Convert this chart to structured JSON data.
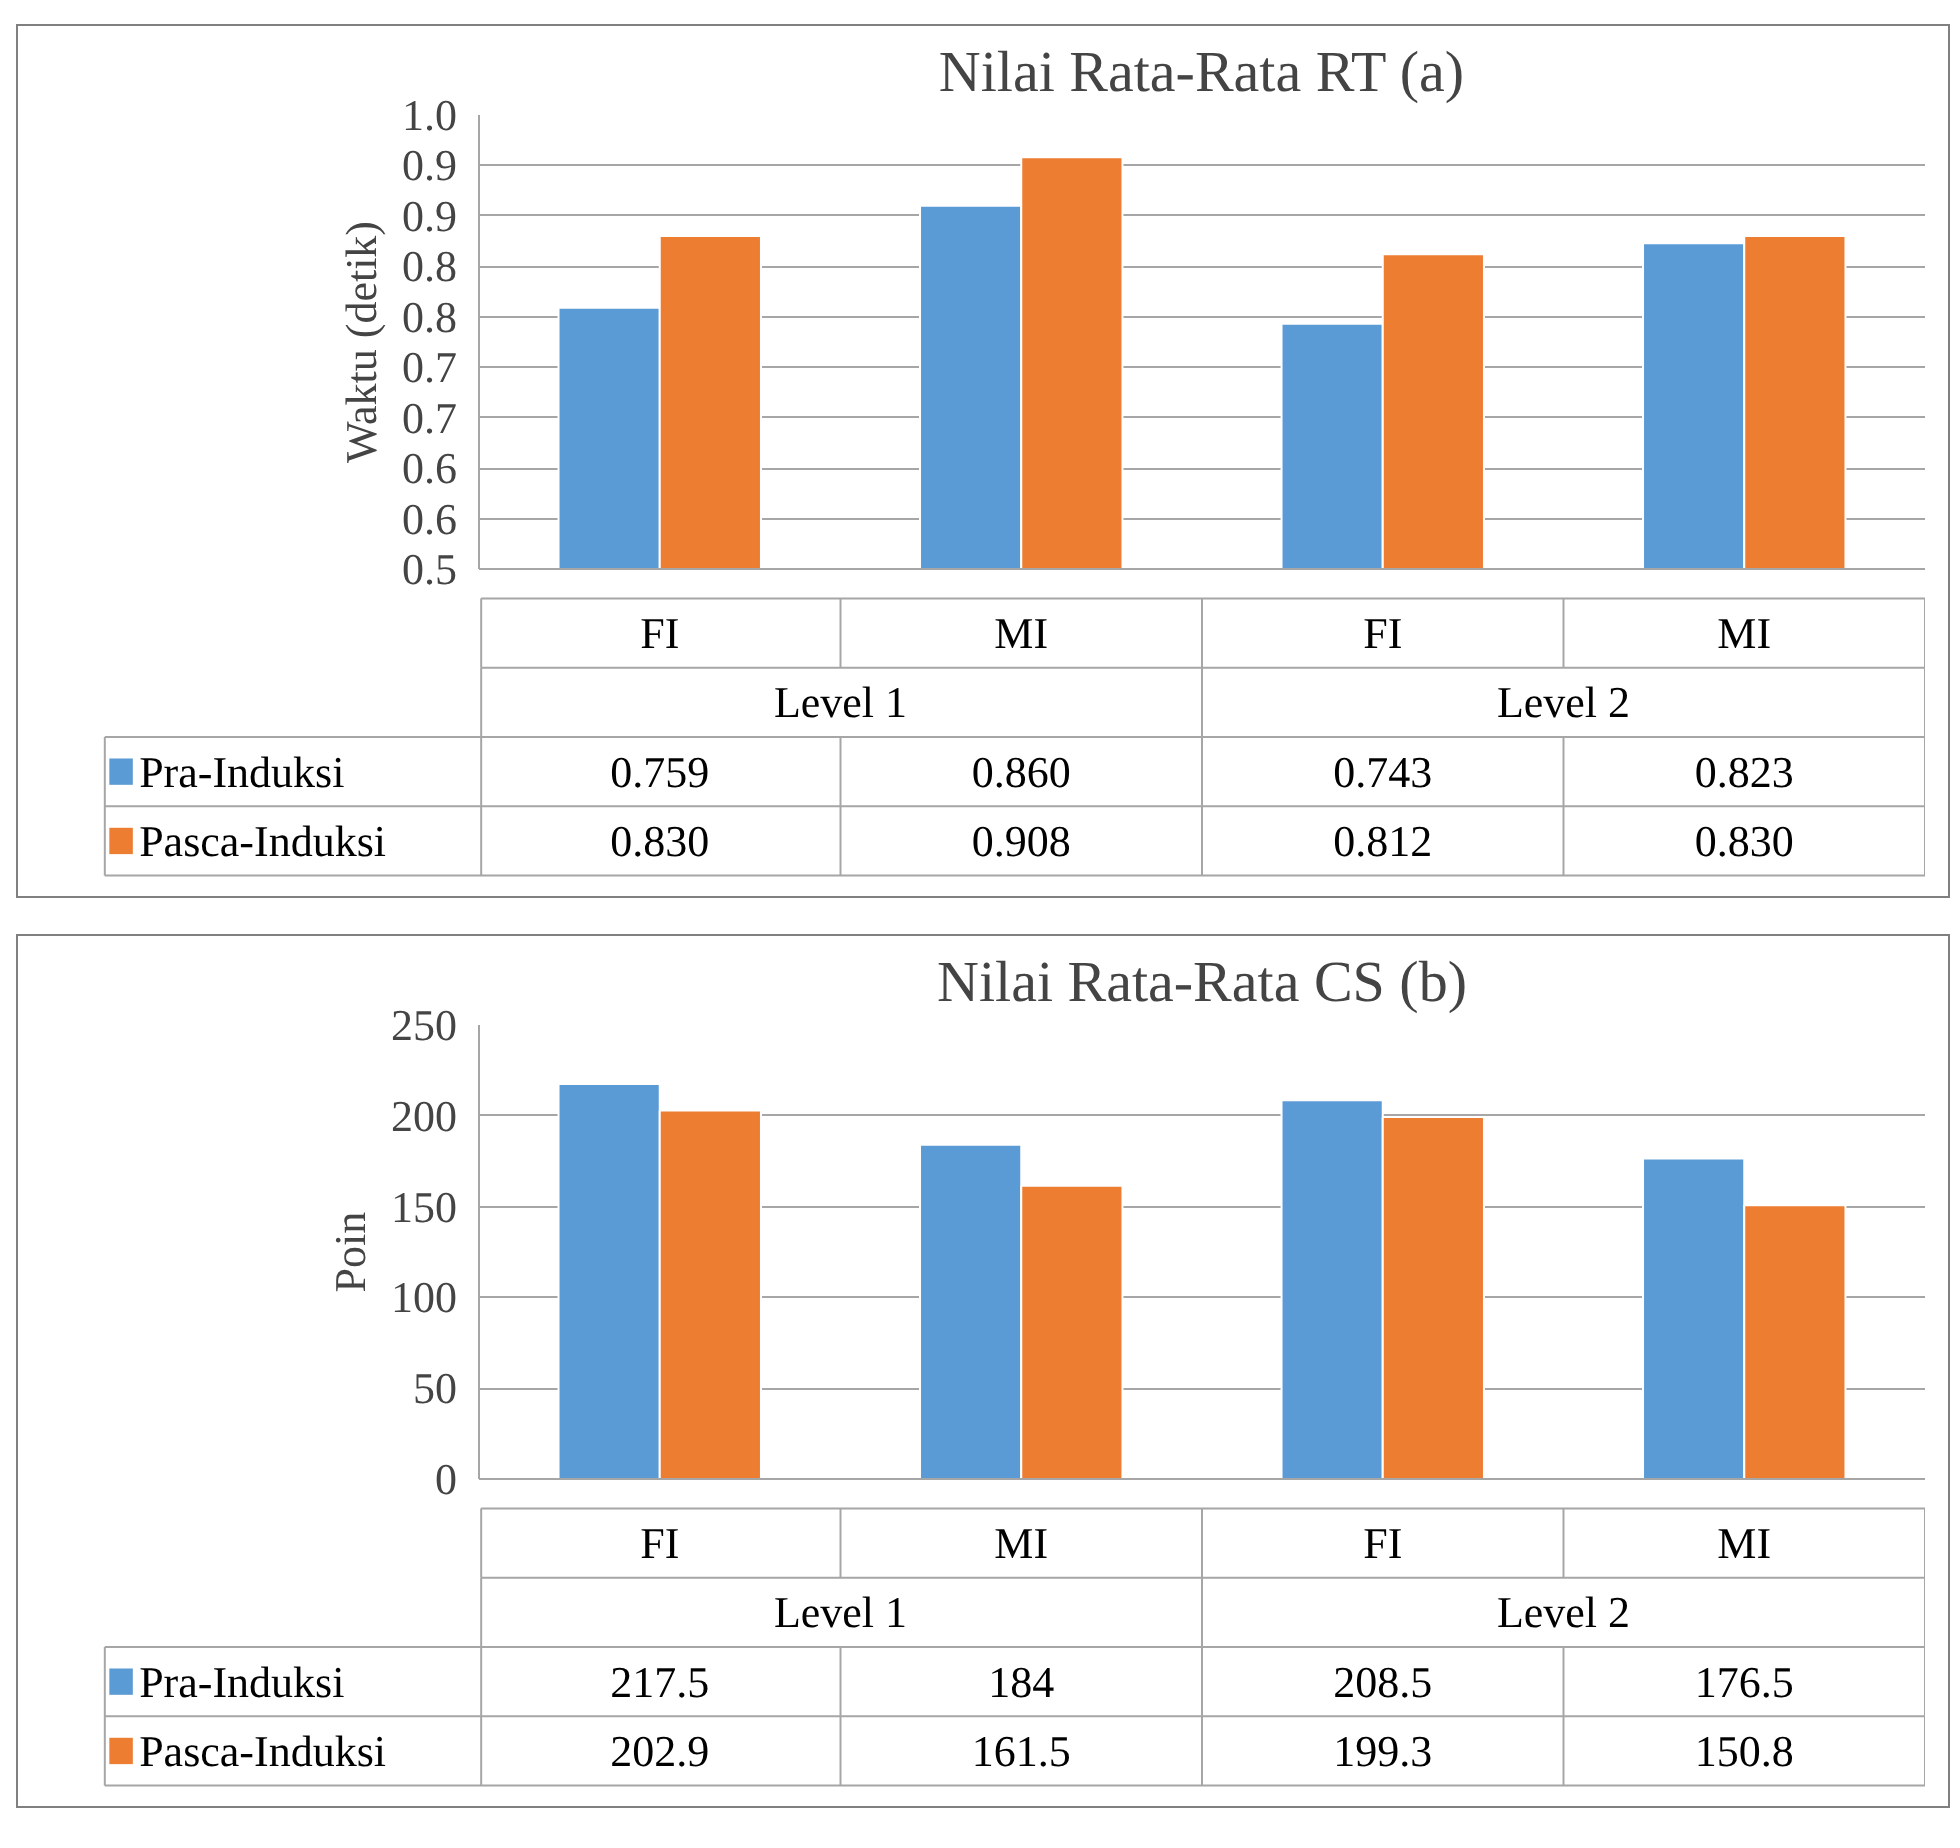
{
  "chart_data": [
    {
      "type": "bar",
      "title": "Nilai Rata-Rata RT (a)",
      "ylabel": "Waktu (detik)",
      "categories": [
        "FI",
        "MI",
        "FI",
        "MI"
      ],
      "annotations": [
        "Level 1",
        "Level 2"
      ],
      "series": [
        {
          "name": "Pra-Induksi",
          "color": "#5b9bd5",
          "values": [
            0.759,
            0.86,
            0.743,
            0.823
          ],
          "value_labels": [
            "0.759",
            "0.860",
            "0.743",
            "0.823"
          ]
        },
        {
          "name": "Pasca-Induksi",
          "color": "#ed7d31",
          "values": [
            0.83,
            0.908,
            0.812,
            0.83
          ],
          "value_labels": [
            "0.830",
            "0.908",
            "0.812",
            "0.830"
          ]
        }
      ],
      "ylim": [
        0.5,
        0.95
      ],
      "yticks": [
        0.5,
        {
          "value": 0.55,
          "label": "0.6"
        },
        0.6,
        {
          "value": 0.65,
          "label": "0.7"
        },
        0.7,
        {
          "value": 0.75,
          "label": "0.8"
        },
        0.8,
        {
          "value": 0.85,
          "label": "0.9"
        },
        0.9,
        {
          "value": 0.95,
          "label": "1.0"
        }
      ],
      "grid": "y",
      "legend": "bottom left"
    },
    {
      "type": "bar",
      "title": "Nilai Rata-Rata CS (b)",
      "ylabel": "Poin",
      "categories": [
        "FI",
        "MI",
        "FI",
        "MI"
      ],
      "annotations": [
        "Level 1",
        "Level 2"
      ],
      "series": [
        {
          "name": "Pra-Induksi",
          "color": "#5b9bd5",
          "values": [
            217.5,
            184,
            208.5,
            176.5
          ],
          "value_labels": [
            "217.5",
            "184",
            "208.5",
            "176.5"
          ]
        },
        {
          "name": "Pasca-Induksi",
          "color": "#ed7d31",
          "values": [
            202.9,
            161.5,
            199.3,
            150.8
          ],
          "value_labels": [
            "202.9",
            "161.5",
            "199.3",
            "150.8"
          ]
        }
      ],
      "ylim": [
        0,
        250
      ],
      "yticks": [
        0,
        50,
        100,
        150,
        200,
        250
      ],
      "grid": "y",
      "legend": "bottom left"
    }
  ]
}
